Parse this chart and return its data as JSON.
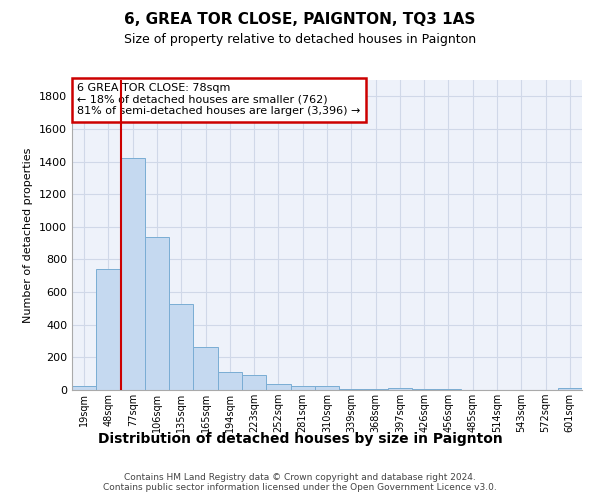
{
  "title": "6, GREA TOR CLOSE, PAIGNTON, TQ3 1AS",
  "subtitle": "Size of property relative to detached houses in Paignton",
  "xlabel": "Distribution of detached houses by size in Paignton",
  "ylabel": "Number of detached properties",
  "categories": [
    "19sqm",
    "48sqm",
    "77sqm",
    "106sqm",
    "135sqm",
    "165sqm",
    "194sqm",
    "223sqm",
    "252sqm",
    "281sqm",
    "310sqm",
    "339sqm",
    "368sqm",
    "397sqm",
    "426sqm",
    "456sqm",
    "485sqm",
    "514sqm",
    "543sqm",
    "572sqm",
    "601sqm"
  ],
  "values": [
    22,
    740,
    1425,
    940,
    530,
    265,
    110,
    95,
    38,
    25,
    25,
    5,
    5,
    15,
    5,
    5,
    0,
    0,
    0,
    0,
    15
  ],
  "bar_color": "#c5d9f0",
  "bar_edge_color": "#7aadd4",
  "vline_color": "#cc0000",
  "annotation_text": "6 GREA TOR CLOSE: 78sqm\n← 18% of detached houses are smaller (762)\n81% of semi-detached houses are larger (3,396) →",
  "annotation_box_color": "#ffffff",
  "annotation_box_edge": "#cc0000",
  "footer_text": "Contains HM Land Registry data © Crown copyright and database right 2024.\nContains public sector information licensed under the Open Government Licence v3.0.",
  "ylim": [
    0,
    1900
  ],
  "yticks": [
    0,
    200,
    400,
    600,
    800,
    1000,
    1200,
    1400,
    1600,
    1800
  ],
  "background_color": "#ffffff",
  "grid_color": "#d0d8e8",
  "title_fontsize": 11,
  "subtitle_fontsize": 9,
  "ylabel_fontsize": 8,
  "xlabel_fontsize": 10
}
